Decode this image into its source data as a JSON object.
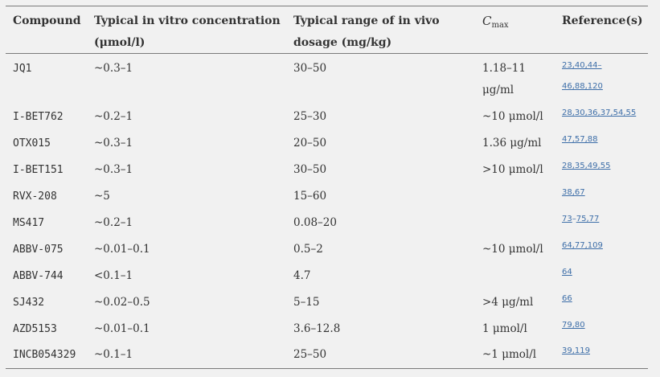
{
  "header": {
    "compound": "Compound",
    "invitro_line1": "Typical in vitro concentration",
    "invitro_line2": "(μmol/l)",
    "invivo_line1": "Typical range of in vivo",
    "invivo_line2": "dosage (mg/kg)",
    "cmax_c": "C",
    "cmax_sub": "max",
    "refs": "Reference(s)"
  },
  "rows": [
    {
      "compound": "JQ1",
      "invitro": "~0.3–1",
      "invivo": "30–50",
      "cmax_line1": "1.18–11",
      "cmax_line2": "μg/ml",
      "ref_line1": "23,40,44",
      "ref_dash": "–",
      "ref_line2": "46,88,120"
    },
    {
      "compound": "I-BET762",
      "invitro": "~0.2–1",
      "invivo": "25–30",
      "cmax": "~10 μmol/l",
      "ref": "28,30,36,37,54,55"
    },
    {
      "compound": "OTX015",
      "invitro": "~0.3–1",
      "invivo": "20–50",
      "cmax": "1.36 μg/ml",
      "ref": "47,57,88"
    },
    {
      "compound": "I-BET151",
      "invitro": "~0.3–1",
      "invivo": "30–50",
      "cmax": ">10 μmol/l",
      "ref": "28,35,49,55"
    },
    {
      "compound": "RVX-208",
      "invitro": "~5",
      "invivo": "15–60",
      "cmax": "",
      "ref": "38,67"
    },
    {
      "compound": "MS417",
      "invitro": "~0.2–1",
      "invivo": "0.08–20",
      "cmax": "",
      "ref_a": "73",
      "ref_dash": "–",
      "ref_b": "75,77"
    },
    {
      "compound": "ABBV-075",
      "invitro": "~0.01–0.1",
      "invivo": "0.5–2",
      "cmax": "~10 μmol/l",
      "ref": "64,77,109"
    },
    {
      "compound": "ABBV-744",
      "invitro": "<0.1–1",
      "invivo": "4.7",
      "cmax": "",
      "ref": "64"
    },
    {
      "compound": "SJ432",
      "invitro": "~0.02–0.5",
      "invivo": "5–15",
      "cmax": ">4 μg/ml",
      "ref": "66"
    },
    {
      "compound": "AZD5153",
      "invitro": "~0.01–0.1",
      "invivo": "3.6–12.8",
      "cmax": "1 μmol/l",
      "ref": "79,80"
    },
    {
      "compound": "INCB054329",
      "invitro": "~0.1–1",
      "invivo": "25–50",
      "cmax": "~1 μmol/l",
      "ref": "39,119"
    }
  ]
}
